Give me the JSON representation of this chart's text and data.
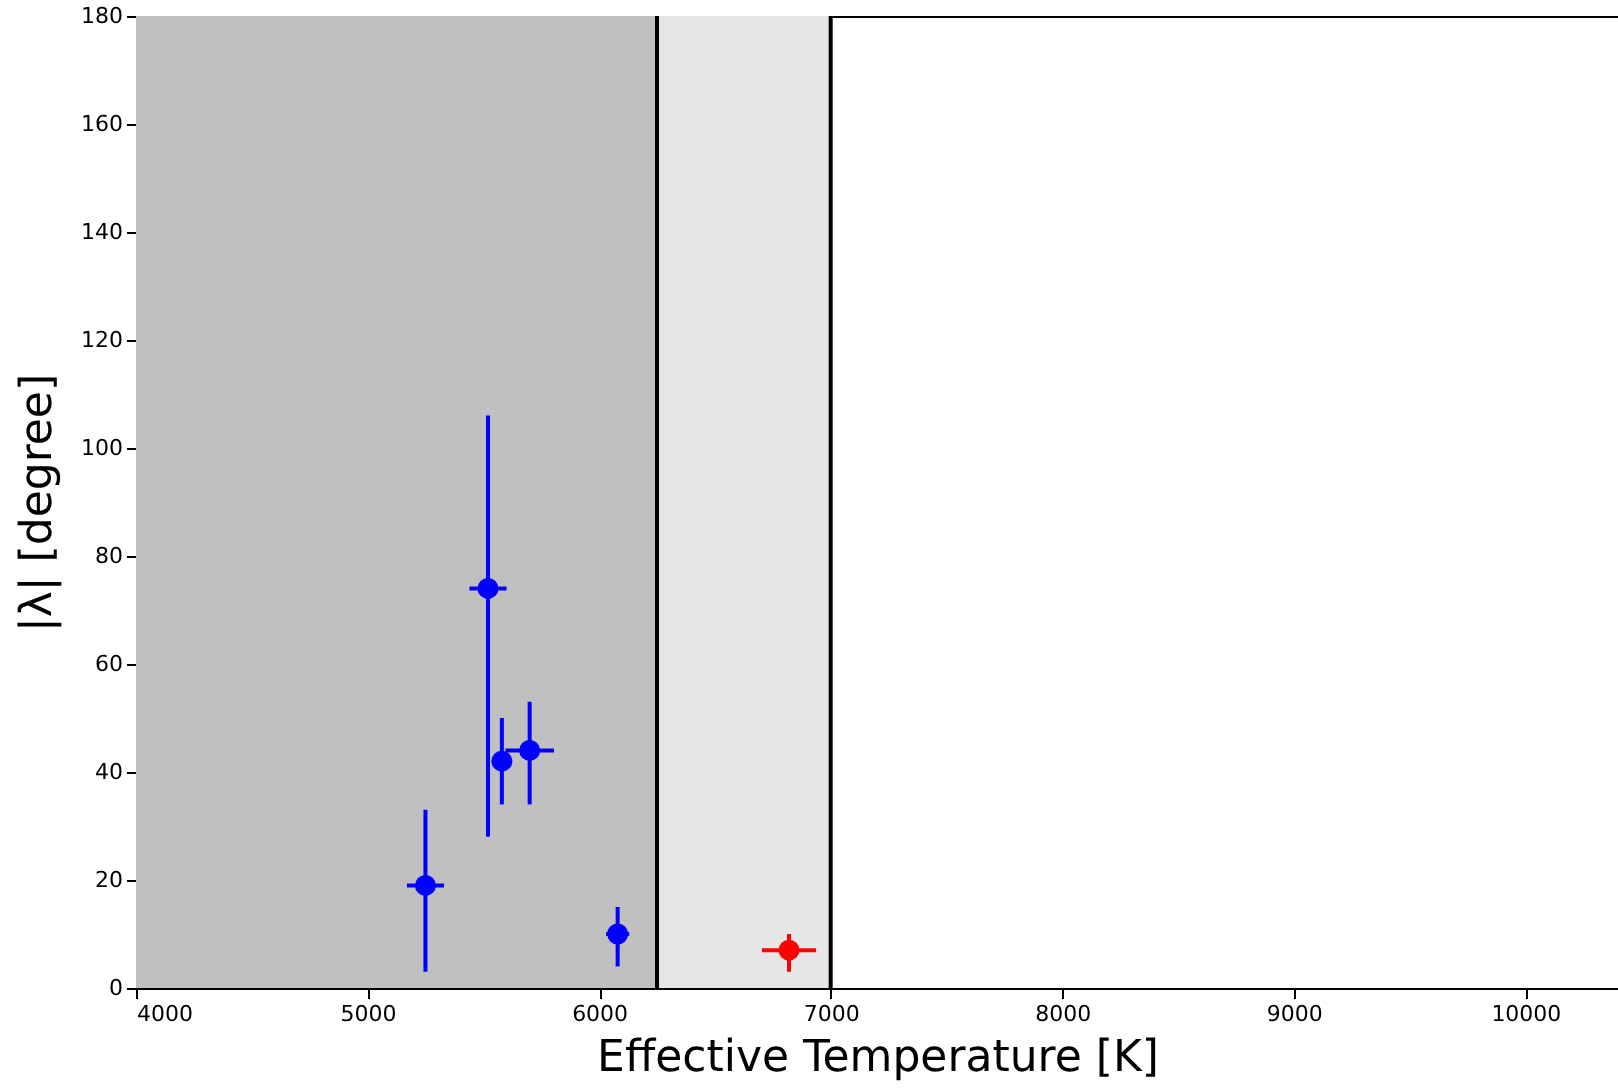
{
  "chart_data": {
    "type": "scatter",
    "xlabel": "Effective Temperature [K]",
    "ylabel": "|λ| [degree]",
    "xlim": [
      4000,
      10400
    ],
    "ylim": [
      0,
      180
    ],
    "xticks": [
      4000,
      5000,
      6000,
      7000,
      8000,
      9000,
      10000
    ],
    "yticks": [
      0,
      20,
      40,
      60,
      80,
      100,
      120,
      140,
      160,
      180
    ],
    "grid": false,
    "marker": "circle",
    "bands": [
      {
        "axis": "x",
        "from": 4000,
        "to": 6250,
        "color": "#c0c0c0"
      },
      {
        "axis": "x",
        "from": 6250,
        "to": 7000,
        "color": "#e6e6e6"
      }
    ],
    "ref_lines": [
      {
        "axis": "x",
        "value": 6250,
        "color": "#000000"
      },
      {
        "axis": "x",
        "value": 7000,
        "color": "#000000"
      }
    ],
    "series": [
      {
        "color": "#0000ff",
        "x": [
          5250,
          5520,
          5580,
          5700,
          6080
        ],
        "values": [
          19,
          74,
          42,
          44,
          10
        ],
        "errors": [
          [
            3,
            33
          ],
          [
            28,
            106
          ],
          [
            34,
            50
          ],
          [
            34,
            53
          ],
          [
            4,
            15
          ]
        ],
        "xerrors": [
          80,
          80,
          40,
          105,
          50
        ]
      },
      {
        "color": "#ff0000",
        "x": [
          6820
        ],
        "values": [
          7
        ],
        "errors": [
          [
            3,
            10
          ]
        ],
        "xerrors": [
          117
        ]
      }
    ]
  }
}
